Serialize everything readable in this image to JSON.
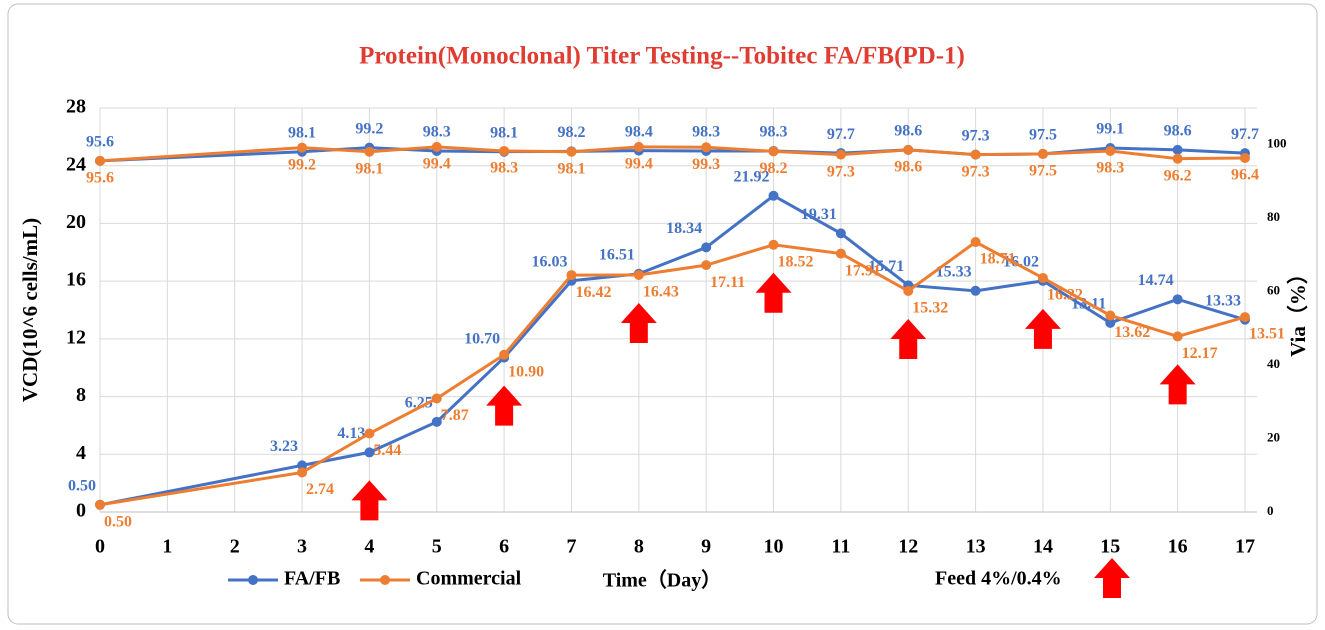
{
  "chart_data": {
    "type": "line",
    "title": "Protein(Monoclonal) Titer Testing--Tobitec FA/FB(PD-1)",
    "x_label": "Time（Day）",
    "y_label": "VCD(10^6 cells/mL)",
    "y2_label": "Via（%）",
    "x": [
      0,
      3,
      4,
      5,
      6,
      7,
      8,
      9,
      10,
      11,
      12,
      13,
      14,
      15,
      16,
      17
    ],
    "xlim": [
      0,
      17
    ],
    "xticks": [
      0,
      1,
      2,
      3,
      4,
      5,
      6,
      7,
      8,
      9,
      10,
      11,
      12,
      13,
      14,
      15,
      16,
      17
    ],
    "ylim": [
      0,
      28
    ],
    "yticks": [
      0,
      4,
      8,
      12,
      16,
      20,
      24,
      28
    ],
    "y2lim": [
      0,
      110
    ],
    "y2ticks": [
      0,
      20,
      40,
      60,
      80,
      100
    ],
    "grid": true,
    "series": [
      {
        "name": "FA/FB",
        "color": "#4472c4",
        "values": [
          0.5,
          3.23,
          4.13,
          6.25,
          10.7,
          16.03,
          16.51,
          18.34,
          21.92,
          19.31,
          15.71,
          15.33,
          16.02,
          13.11,
          14.74,
          13.33
        ],
        "value_labels": [
          "0.50",
          "3.23",
          "4.13",
          "6.25",
          "10.70",
          "16.03",
          "16.51",
          "18.34",
          "21.92",
          "19.31",
          "15.71",
          "15.33",
          "16.02",
          "13.11",
          "14.74",
          "13.33"
        ]
      },
      {
        "name": "Commercial",
        "color": "#ed7d31",
        "values": [
          0.5,
          2.74,
          5.44,
          7.87,
          10.9,
          16.42,
          16.43,
          17.11,
          18.52,
          17.91,
          15.32,
          18.71,
          16.22,
          13.62,
          12.17,
          13.51
        ],
        "value_labels": [
          "0.50",
          "2.74",
          "5.44",
          "7.87",
          "10.90",
          "16.42",
          "16.43",
          "17.11",
          "18.52",
          "17.91",
          "15.32",
          "18.71",
          "16.22",
          "13.62",
          "12.17",
          "13.51"
        ]
      },
      {
        "name": "FA/FB",
        "color": "#4472c4",
        "axis": "y2",
        "values": [
          95.6,
          98.1,
          99.2,
          98.3,
          98.1,
          98.2,
          98.4,
          98.3,
          98.3,
          97.7,
          98.6,
          97.3,
          97.5,
          99.1,
          98.6,
          97.7
        ]
      },
      {
        "name": "Commercial",
        "color": "#ed7d31",
        "axis": "y2",
        "values": [
          95.6,
          99.2,
          98.1,
          99.4,
          98.3,
          98.1,
          99.4,
          99.3,
          98.2,
          97.3,
          98.6,
          97.3,
          97.5,
          98.3,
          96.2,
          96.4
        ]
      }
    ],
    "feed_days": [
      4,
      6,
      8,
      10,
      12,
      14,
      16
    ],
    "feed_label": "Feed 4%/0.4%",
    "feed_color": "#ff0000"
  }
}
